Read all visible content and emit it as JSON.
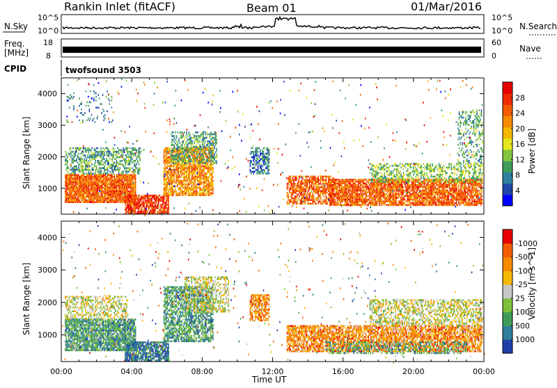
{
  "header": {
    "station": "Rankin Inlet (fitACF)",
    "beam": "Beam 01",
    "date": "01/Mar/2016"
  },
  "strips": {
    "nsky_label": "N.Sky",
    "nsearch_label": "N.Search",
    "freq_label_1": "Freq.",
    "freq_label_2": "[MHz]",
    "nave_label": "Nave",
    "cpid_label": "CPID",
    "cpid_value": "twofsound 3503",
    "nsky_ticks": [
      "10^5",
      "10^0"
    ],
    "nsearch_ticks": [
      "10^5",
      "10^0"
    ],
    "freq_ticks": [
      "18",
      "8"
    ],
    "nave_ticks": [
      "60",
      "0"
    ]
  },
  "chart_data": [
    {
      "type": "heatmap",
      "name": "power",
      "ylabel": "Slant Range [km]",
      "xlabel": "Time UT",
      "x_ticks": [
        "00:00",
        "04:00",
        "08:00",
        "12:00",
        "16:00",
        "20:00",
        "00:00"
      ],
      "x_range_hours": [
        0,
        24
      ],
      "y_ticks": [
        1000,
        2000,
        3000,
        4000
      ],
      "y_range_km": [
        180,
        4500
      ],
      "colorbar": {
        "label": "Power [dB]",
        "tick_labels": [
          "4",
          "8",
          "12",
          "16",
          "20",
          "24",
          "28"
        ],
        "colors": [
          "#0000ff",
          "#1f49a8",
          "#2d7fa0",
          "#3f9c58",
          "#82c53f",
          "#e6e61e",
          "#f5b800",
          "#f58a00",
          "#f25c00",
          "#f02a00",
          "#e80000"
        ]
      },
      "blobs": [
        {
          "t0": 0.2,
          "t1": 4.2,
          "r0": 550,
          "r1": 1450,
          "c": 8,
          "d": 0.95
        },
        {
          "t0": 0.2,
          "t1": 4.5,
          "r0": 1450,
          "r1": 2300,
          "c": 3,
          "d": 0.55
        },
        {
          "t0": 3.6,
          "t1": 6.1,
          "r0": 220,
          "r1": 800,
          "c": 9,
          "d": 0.85
        },
        {
          "t0": 5.8,
          "t1": 8.6,
          "r0": 800,
          "r1": 2300,
          "c": 7,
          "d": 0.8
        },
        {
          "t0": 6.2,
          "t1": 8.8,
          "r0": 1800,
          "r1": 2800,
          "c": 3,
          "d": 0.55
        },
        {
          "t0": 10.7,
          "t1": 11.8,
          "r0": 1450,
          "r1": 2300,
          "c": 2,
          "d": 0.6
        },
        {
          "t0": 12.8,
          "t1": 15.5,
          "r0": 500,
          "r1": 1400,
          "c": 8,
          "d": 0.75
        },
        {
          "t0": 15.2,
          "t1": 23.9,
          "r0": 450,
          "r1": 1300,
          "c": 8,
          "d": 0.85
        },
        {
          "t0": 17.5,
          "t1": 23.9,
          "r0": 1200,
          "r1": 1800,
          "c": 4,
          "d": 0.5
        },
        {
          "t0": 22.5,
          "t1": 23.9,
          "r0": 1800,
          "r1": 3500,
          "c": 3,
          "d": 0.35
        },
        {
          "t0": 0.3,
          "t1": 3.0,
          "r0": 3100,
          "r1": 4100,
          "c": 2,
          "d": 0.12
        }
      ]
    },
    {
      "type": "heatmap",
      "name": "velocity",
      "ylabel": "Slant Range [km]",
      "xlabel": "Time UT",
      "x_ticks": [
        "00:00",
        "04:00",
        "08:00",
        "12:00",
        "16:00",
        "20:00",
        "00:00"
      ],
      "x_range_hours": [
        0,
        24
      ],
      "y_ticks": [
        1000,
        2000,
        3000,
        4000
      ],
      "y_range_km": [
        180,
        4500
      ],
      "colorbar": {
        "label": "Velocity [m s^-1]",
        "tick_labels": [
          "1000",
          "500",
          "100",
          "25",
          "-25",
          "-100",
          "-500",
          "-1000"
        ],
        "colors": [
          "#1f3fa8",
          "#2e7d9a",
          "#3f9c58",
          "#7cc03a",
          "#c8c8c8",
          "#f5b800",
          "#f58a00",
          "#f25c00",
          "#e80000"
        ]
      },
      "blobs": [
        {
          "t0": 0.2,
          "t1": 4.2,
          "r0": 550,
          "r1": 1500,
          "c": 2,
          "d": 0.9
        },
        {
          "t0": 0.2,
          "t1": 3.8,
          "r0": 1500,
          "r1": 2200,
          "c": 4,
          "d": 0.5
        },
        {
          "t0": 3.6,
          "t1": 6.1,
          "r0": 220,
          "r1": 800,
          "c": 1,
          "d": 0.8
        },
        {
          "t0": 5.8,
          "t1": 8.6,
          "r0": 800,
          "r1": 2500,
          "c": 2,
          "d": 0.75
        },
        {
          "t0": 7.0,
          "t1": 9.5,
          "r0": 1700,
          "r1": 2800,
          "c": 4,
          "d": 0.5
        },
        {
          "t0": 10.7,
          "t1": 11.8,
          "r0": 1450,
          "r1": 2250,
          "c": 6,
          "d": 0.75
        },
        {
          "t0": 12.8,
          "t1": 23.9,
          "r0": 500,
          "r1": 1300,
          "c": 6,
          "d": 0.8
        },
        {
          "t0": 17.5,
          "t1": 23.9,
          "r0": 1300,
          "r1": 2100,
          "c": 4,
          "d": 0.55
        },
        {
          "t0": 15.0,
          "t1": 23.0,
          "r0": 450,
          "r1": 800,
          "c": 2,
          "d": 0.45
        }
      ]
    }
  ]
}
